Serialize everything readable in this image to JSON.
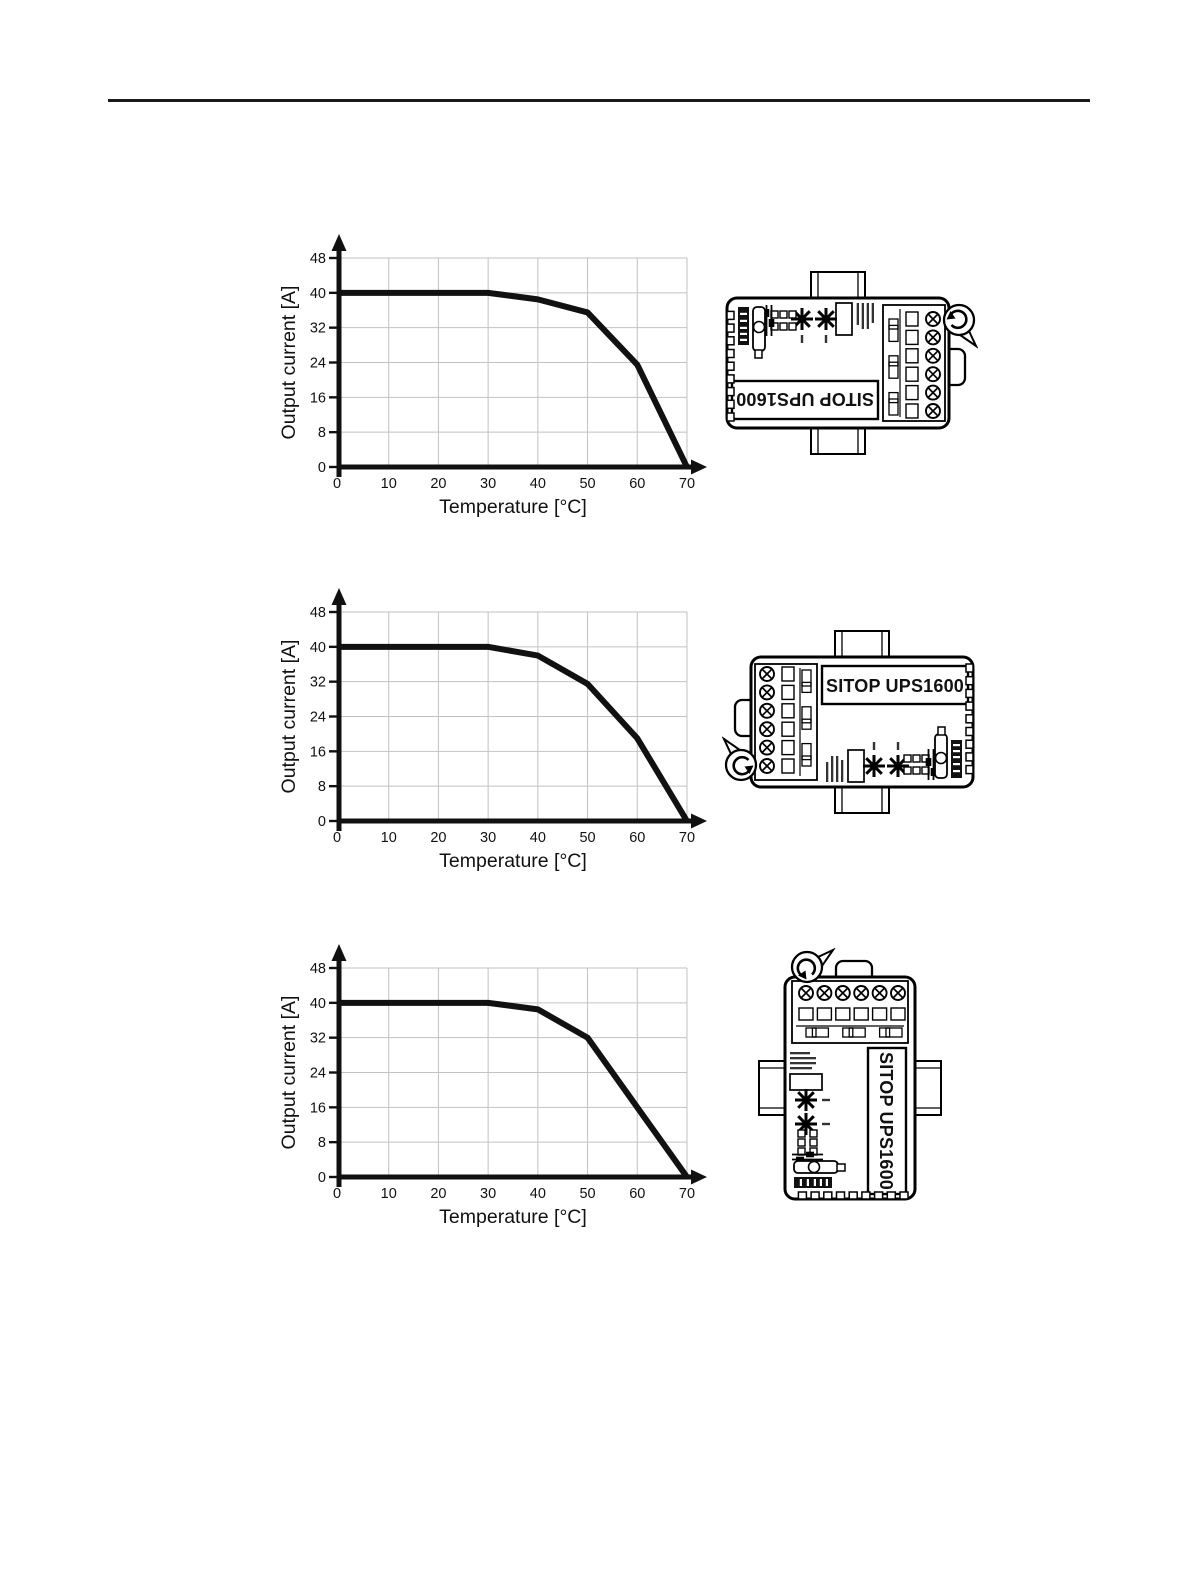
{
  "page": {
    "background": "#ffffff",
    "divider_color": "#1a1a1a"
  },
  "figures": [
    {
      "name": "derating-upside-down-mounting",
      "device": {
        "label": "SITOP UPS1600",
        "orientation": "rotated-180",
        "rotation_icon": "rotation-arrow",
        "mounting": "DIN rail vertical"
      },
      "chart_data": {
        "type": "line",
        "title": "",
        "xlabel": "Temperature [°C]",
        "ylabel": "Output current [A]",
        "x": [
          0,
          30,
          40,
          50,
          60,
          70
        ],
        "y": [
          40,
          40,
          38.5,
          35.5,
          23.5,
          0
        ],
        "xticks": [
          0,
          10,
          20,
          30,
          40,
          50,
          60,
          70
        ],
        "yticks": [
          0,
          8,
          16,
          24,
          32,
          40,
          48
        ],
        "xlim": [
          0,
          74
        ],
        "ylim": [
          0,
          53
        ],
        "grid": true,
        "line_color": "#111111",
        "grid_color": "#c2c2c2",
        "legend": "none"
      }
    },
    {
      "name": "derating-normal-mounting",
      "device": {
        "label": "SITOP UPS1600",
        "orientation": "normal",
        "rotation_icon": "rotation-arrow",
        "mounting": "DIN rail vertical"
      },
      "chart_data": {
        "type": "line",
        "title": "",
        "xlabel": "Temperature [°C]",
        "ylabel": "Output current [A]",
        "x": [
          0,
          30,
          40,
          50,
          60,
          70
        ],
        "y": [
          40,
          40,
          38,
          31.5,
          19,
          0
        ],
        "xticks": [
          0,
          10,
          20,
          30,
          40,
          50,
          60,
          70
        ],
        "yticks": [
          0,
          8,
          16,
          24,
          32,
          40,
          48
        ],
        "xlim": [
          0,
          74
        ],
        "ylim": [
          0,
          53
        ],
        "grid": true,
        "line_color": "#111111",
        "grid_color": "#c2c2c2",
        "legend": "none"
      }
    },
    {
      "name": "derating-sideways-mounting",
      "device": {
        "label": "SITOP UPS1600",
        "orientation": "rotated-90",
        "rotation_icon": "rotation-arrow",
        "mounting": "DIN rail horizontal"
      },
      "chart_data": {
        "type": "line",
        "title": "",
        "xlabel": "Temperature [°C]",
        "ylabel": "Output current [A]",
        "x": [
          0,
          30,
          40,
          50,
          70
        ],
        "y": [
          40,
          40,
          38.5,
          32,
          0
        ],
        "xticks": [
          0,
          10,
          20,
          30,
          40,
          50,
          60,
          70
        ],
        "yticks": [
          0,
          8,
          16,
          24,
          32,
          40,
          48
        ],
        "xlim": [
          0,
          74
        ],
        "ylim": [
          0,
          53
        ],
        "grid": true,
        "line_color": "#111111",
        "grid_color": "#c2c2c2",
        "legend": "none"
      }
    }
  ]
}
